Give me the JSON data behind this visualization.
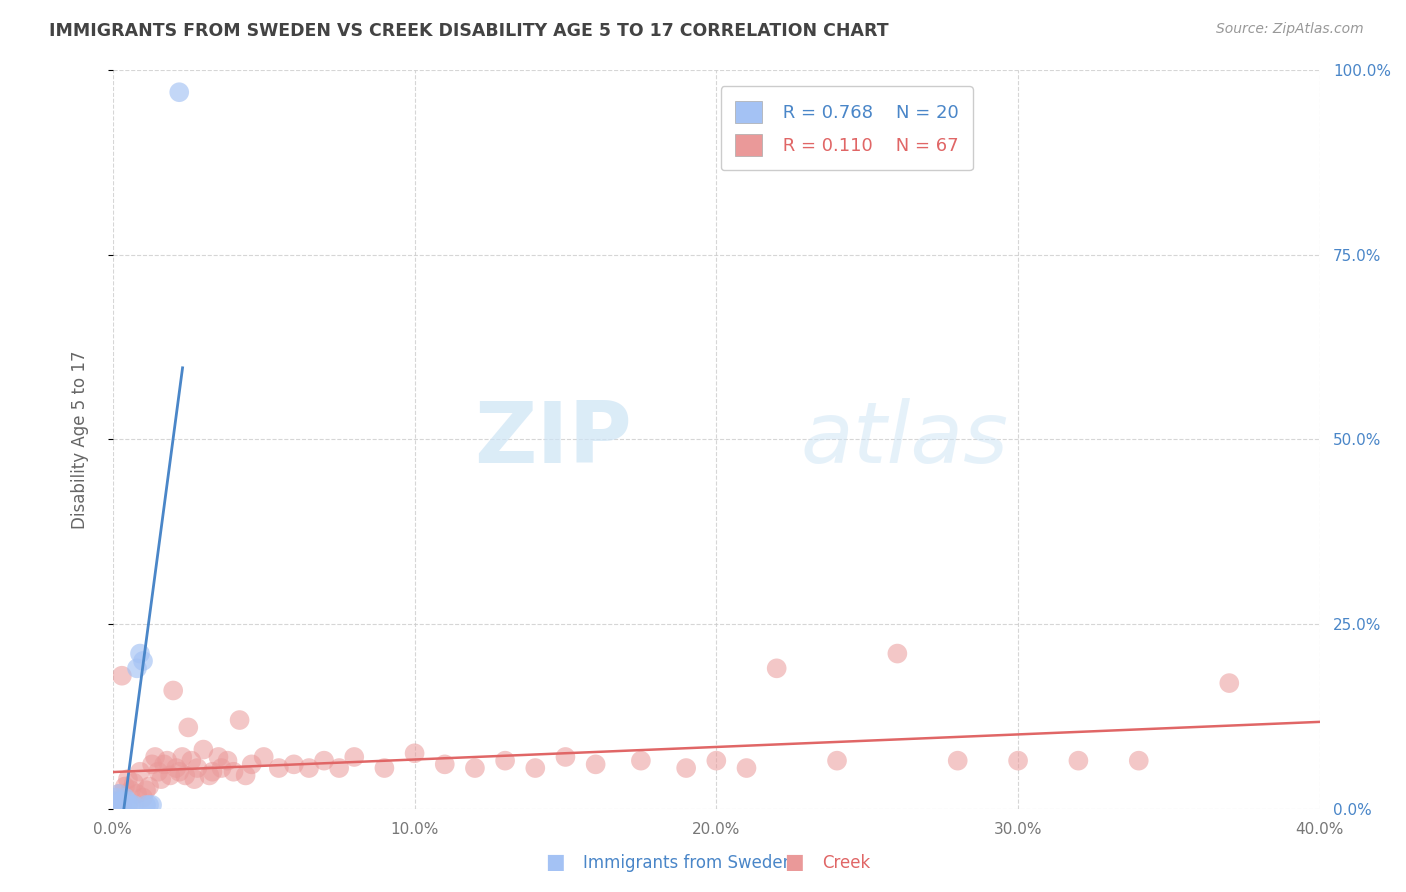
{
  "title": "IMMIGRANTS FROM SWEDEN VS CREEK DISABILITY AGE 5 TO 17 CORRELATION CHART",
  "source": "Source: ZipAtlas.com",
  "ylabel": "Disability Age 5 to 17",
  "xlim": [
    0.0,
    0.4
  ],
  "ylim": [
    0.0,
    1.0
  ],
  "x_ticks": [
    0.0,
    0.1,
    0.2,
    0.3,
    0.4
  ],
  "x_tick_labels": [
    "0.0%",
    "10.0%",
    "20.0%",
    "30.0%",
    "40.0%"
  ],
  "y_tick_labels_right": [
    "0.0%",
    "25.0%",
    "50.0%",
    "75.0%",
    "100.0%"
  ],
  "y_ticks": [
    0.0,
    0.25,
    0.5,
    0.75,
    1.0
  ],
  "legend_sweden_R": "0.768",
  "legend_sweden_N": "20",
  "legend_creek_R": "0.110",
  "legend_creek_N": "67",
  "sweden_color": "#a4c2f4",
  "creek_color": "#ea9999",
  "sweden_line_color": "#4a86c8",
  "creek_line_color": "#e06666",
  "watermark_zip": "ZIP",
  "watermark_atlas": "atlas",
  "background_color": "#ffffff",
  "grid_color": "#cccccc",
  "title_color": "#434343",
  "sweden_x": [
    0.0005,
    0.001,
    0.001,
    0.002,
    0.002,
    0.003,
    0.003,
    0.004,
    0.004,
    0.005,
    0.005,
    0.006,
    0.007,
    0.008,
    0.009,
    0.01,
    0.011,
    0.012,
    0.013,
    0.022
  ],
  "sweden_y": [
    0.005,
    0.01,
    0.015,
    0.005,
    0.02,
    0.005,
    0.01,
    0.005,
    0.015,
    0.005,
    0.01,
    0.005,
    0.005,
    0.19,
    0.21,
    0.2,
    0.005,
    0.005,
    0.005,
    0.97
  ],
  "creek_x": [
    0.001,
    0.002,
    0.003,
    0.003,
    0.004,
    0.005,
    0.005,
    0.006,
    0.007,
    0.008,
    0.009,
    0.01,
    0.011,
    0.012,
    0.013,
    0.014,
    0.015,
    0.016,
    0.017,
    0.018,
    0.019,
    0.02,
    0.021,
    0.022,
    0.023,
    0.024,
    0.025,
    0.026,
    0.027,
    0.028,
    0.03,
    0.032,
    0.033,
    0.035,
    0.036,
    0.038,
    0.04,
    0.042,
    0.044,
    0.046,
    0.05,
    0.055,
    0.06,
    0.065,
    0.07,
    0.075,
    0.08,
    0.09,
    0.1,
    0.11,
    0.12,
    0.13,
    0.14,
    0.15,
    0.16,
    0.175,
    0.19,
    0.2,
    0.21,
    0.22,
    0.24,
    0.26,
    0.28,
    0.3,
    0.32,
    0.34,
    0.37
  ],
  "creek_y": [
    0.01,
    0.02,
    0.005,
    0.18,
    0.03,
    0.04,
    0.005,
    0.025,
    0.035,
    0.02,
    0.05,
    0.015,
    0.025,
    0.03,
    0.06,
    0.07,
    0.05,
    0.04,
    0.06,
    0.065,
    0.045,
    0.16,
    0.055,
    0.05,
    0.07,
    0.045,
    0.11,
    0.065,
    0.04,
    0.055,
    0.08,
    0.045,
    0.05,
    0.07,
    0.055,
    0.065,
    0.05,
    0.12,
    0.045,
    0.06,
    0.07,
    0.055,
    0.06,
    0.055,
    0.065,
    0.055,
    0.07,
    0.055,
    0.075,
    0.06,
    0.055,
    0.065,
    0.055,
    0.07,
    0.06,
    0.065,
    0.055,
    0.065,
    0.055,
    0.19,
    0.065,
    0.21,
    0.065,
    0.065,
    0.065,
    0.065,
    0.17
  ]
}
